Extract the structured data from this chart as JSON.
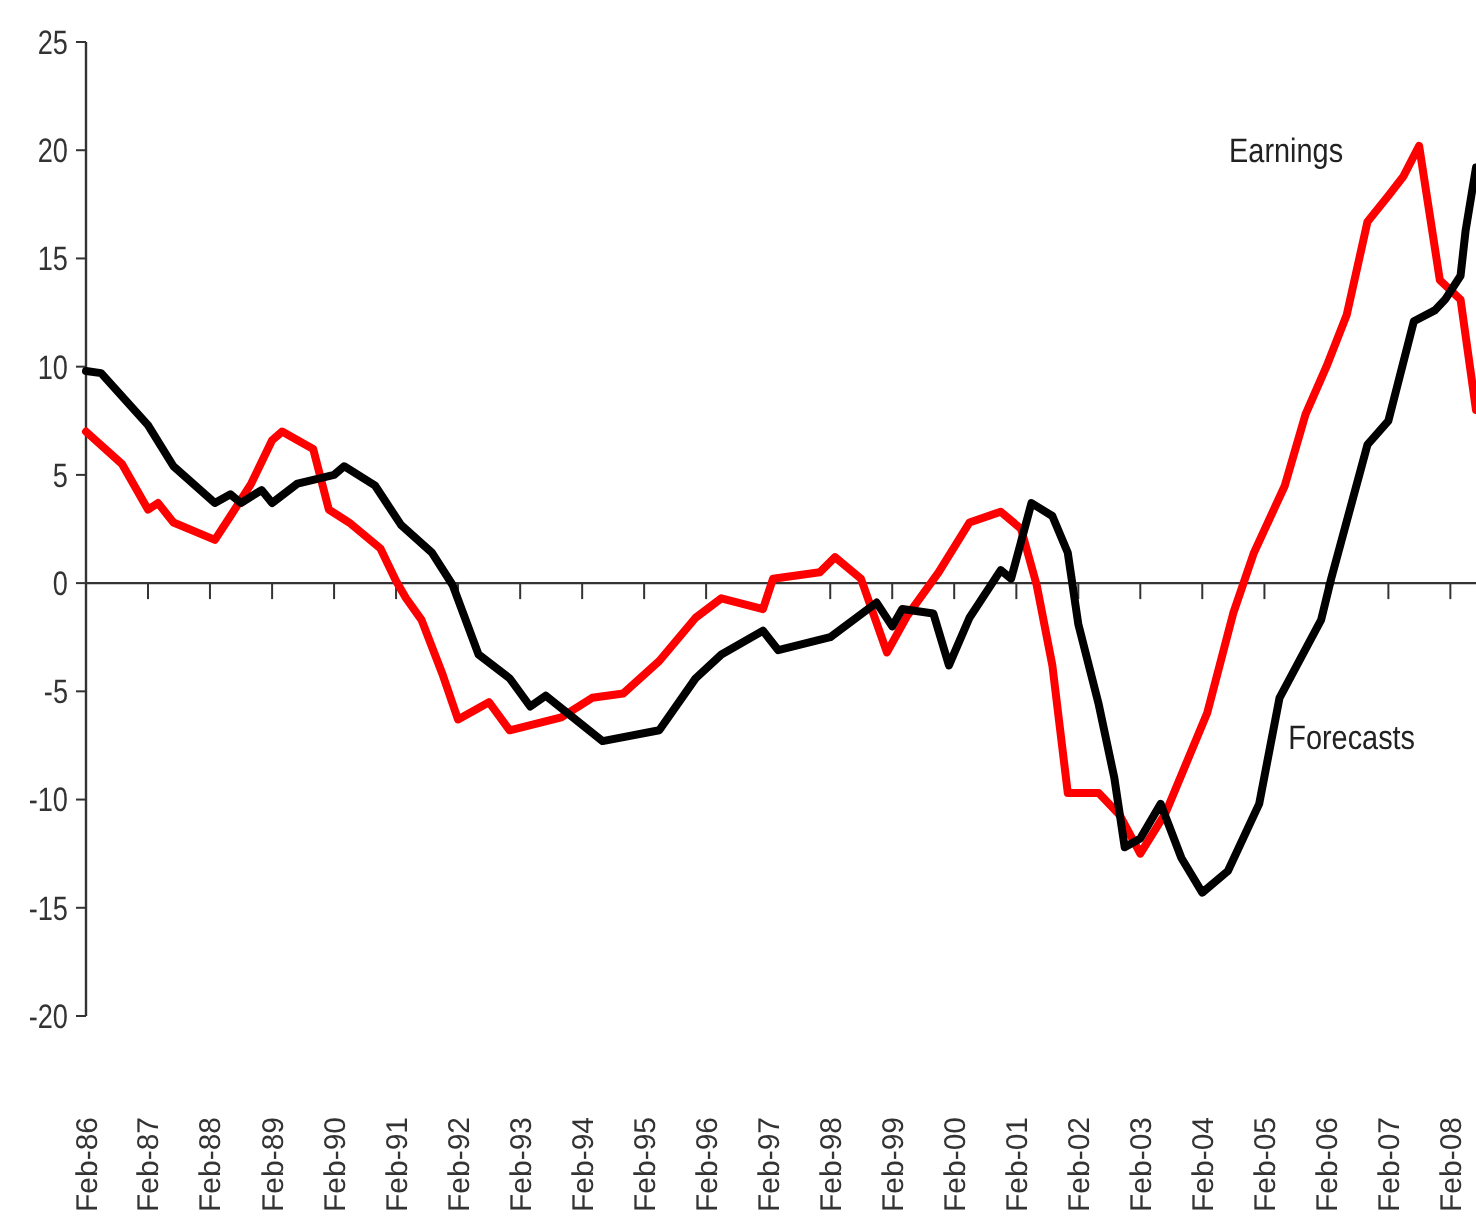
{
  "chart_data": {
    "type": "line",
    "xlim": [
      "1986-02",
      "2008-07"
    ],
    "ylim": [
      -20,
      25
    ],
    "yticks": [
      -20,
      -15,
      -10,
      -5,
      0,
      5,
      10,
      15,
      20,
      25
    ],
    "xticks": [
      {
        "value": "1986-02",
        "label": "Feb-86"
      },
      {
        "value": "1987-02",
        "label": "Feb-87"
      },
      {
        "value": "1988-02",
        "label": "Feb-88"
      },
      {
        "value": "1989-02",
        "label": "Feb-89"
      },
      {
        "value": "1990-02",
        "label": "Feb-90"
      },
      {
        "value": "1991-02",
        "label": "Feb-91"
      },
      {
        "value": "1992-02",
        "label": "Feb-92"
      },
      {
        "value": "1993-02",
        "label": "Feb-93"
      },
      {
        "value": "1994-02",
        "label": "Feb-94"
      },
      {
        "value": "1995-02",
        "label": "Feb-95"
      },
      {
        "value": "1996-02",
        "label": "Feb-96"
      },
      {
        "value": "1997-02",
        "label": "Feb-97"
      },
      {
        "value": "1998-02",
        "label": "Feb-98"
      },
      {
        "value": "1999-02",
        "label": "Feb-99"
      },
      {
        "value": "2000-02",
        "label": "Feb-00"
      },
      {
        "value": "2001-02",
        "label": "Feb-01"
      },
      {
        "value": "2002-02",
        "label": "Feb-02"
      },
      {
        "value": "2003-02",
        "label": "Feb-03"
      },
      {
        "value": "2004-02",
        "label": "Feb-04"
      },
      {
        "value": "2005-02",
        "label": "Feb-05"
      },
      {
        "value": "2006-02",
        "label": "Feb-06"
      },
      {
        "value": "2007-02",
        "label": "Feb-07"
      },
      {
        "value": "2008-02",
        "label": "Feb-08"
      }
    ],
    "marker": "none",
    "line_style": "solid",
    "series": [
      {
        "name": "Earnings",
        "color": "#ff0000",
        "x": [
          "1986-02",
          "1986-09",
          "1987-02",
          "1987-04",
          "1987-07",
          "1987-12",
          "1988-03",
          "1988-06",
          "1988-10",
          "1989-02",
          "1989-04",
          "1989-07",
          "1989-10",
          "1990-01",
          "1990-05",
          "1990-11",
          "1991-02",
          "1991-04",
          "1991-07",
          "1991-11",
          "1992-02",
          "1992-08",
          "1992-12",
          "1993-10",
          "1994-04",
          "1994-10",
          "1995-05",
          "1995-12",
          "1996-05",
          "1997-01",
          "1997-03",
          "1997-12",
          "1998-03",
          "1998-08",
          "1999-01",
          "1999-05",
          "1999-11",
          "2000-05",
          "2000-11",
          "2001-03",
          "2001-06",
          "2001-09",
          "2001-12",
          "2002-06",
          "2002-10",
          "2003-02",
          "2003-07",
          "2004-03",
          "2004-08",
          "2004-12",
          "2005-06",
          "2005-10",
          "2006-02",
          "2006-06",
          "2006-10",
          "2007-02",
          "2007-05",
          "2007-08",
          "2007-12",
          "2008-04",
          "2008-07"
        ],
        "values": [
          7.0,
          5.5,
          3.4,
          3.7,
          2.8,
          2.3,
          2.0,
          3.1,
          4.6,
          6.6,
          7.0,
          6.6,
          6.2,
          3.4,
          2.8,
          1.6,
          0.1,
          -0.7,
          -1.7,
          -4.2,
          -6.3,
          -5.5,
          -6.8,
          -6.2,
          -5.3,
          -5.1,
          -3.6,
          -1.6,
          -0.7,
          -1.2,
          0.2,
          0.5,
          1.2,
          0.2,
          -3.2,
          -1.5,
          0.5,
          2.8,
          3.3,
          2.5,
          -0.1,
          -3.8,
          -9.7,
          -9.7,
          -10.7,
          -12.5,
          -10.6,
          -6.0,
          -1.4,
          1.4,
          4.5,
          7.8,
          10.0,
          12.4,
          16.7,
          17.9,
          18.8,
          20.2,
          14.0,
          13.1,
          8.0
        ]
      },
      {
        "name": "Forecasts",
        "color": "#000000",
        "x": [
          "1986-02",
          "1986-05",
          "1987-02",
          "1987-07",
          "1988-03",
          "1988-06",
          "1988-08",
          "1988-12",
          "1989-02",
          "1989-07",
          "1990-02",
          "1990-04",
          "1990-10",
          "1991-03",
          "1991-09",
          "1992-01",
          "1992-06",
          "1992-12",
          "1993-04",
          "1993-07",
          "1994-06",
          "1995-05",
          "1995-12",
          "1996-05",
          "1997-01",
          "1997-04",
          "1998-02",
          "1998-11",
          "1999-02",
          "1999-04",
          "1999-10",
          "2000-01",
          "2000-05",
          "2000-11",
          "2001-01",
          "2001-05",
          "2001-09",
          "2001-12",
          "2002-02",
          "2002-06",
          "2002-09",
          "2002-11",
          "2003-02",
          "2003-06",
          "2003-10",
          "2004-02",
          "2004-07",
          "2005-01",
          "2005-05",
          "2006-01",
          "2006-03",
          "2006-10",
          "2007-02",
          "2007-07",
          "2007-11",
          "2008-01",
          "2008-04",
          "2008-05",
          "2008-07"
        ],
        "values": [
          9.8,
          9.7,
          7.3,
          5.4,
          3.7,
          4.1,
          3.7,
          4.3,
          3.7,
          4.6,
          5.0,
          5.4,
          4.5,
          2.7,
          1.4,
          -0.1,
          -3.3,
          -4.4,
          -5.7,
          -5.2,
          -7.3,
          -6.8,
          -4.4,
          -3.3,
          -2.2,
          -3.1,
          -2.5,
          -0.9,
          -2.0,
          -1.2,
          -1.4,
          -3.8,
          -1.6,
          0.6,
          0.2,
          3.7,
          3.1,
          1.4,
          -1.9,
          -5.6,
          -9.0,
          -12.2,
          -11.8,
          -10.2,
          -12.7,
          -14.3,
          -13.3,
          -10.2,
          -5.3,
          -1.7,
          0.2,
          6.4,
          7.5,
          12.1,
          12.6,
          13.1,
          14.2,
          16.3,
          19.2
        ]
      }
    ]
  }
}
